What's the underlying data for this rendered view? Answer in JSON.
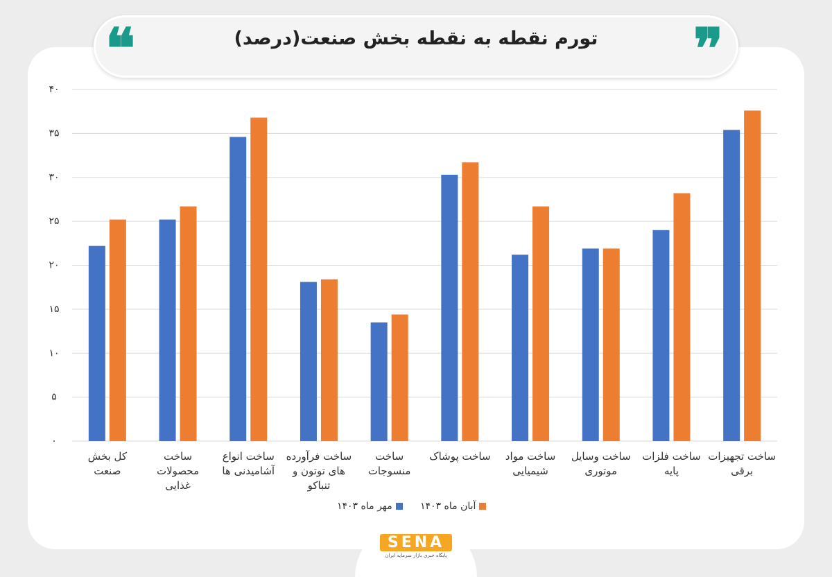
{
  "chart_data": {
    "type": "bar",
    "title": "تورم نقطه به نقطه بخش صنعت(درصد)",
    "categories": [
      "کل بخش صنعت",
      "ساخت محصولات غذایی",
      "ساخت انواع آشامیدنی ها",
      "ساخت فرآورده های توتون و تنباکو",
      "ساخت منسوجات",
      "ساخت پوشاک",
      "ساخت مواد شیمیایی",
      "ساخت وسایل موتوری",
      "ساخت فلزات پایه",
      "ساخت تجهیزات برقی"
    ],
    "series": [
      {
        "name": "مهر ماه ۱۴۰۳",
        "color": "#4472c4",
        "values": [
          22.2,
          25.2,
          34.6,
          18.1,
          13.5,
          30.3,
          21.2,
          21.9,
          24.0,
          35.4
        ]
      },
      {
        "name": "آبان ماه ۱۴۰۳",
        "color": "#ed7d31",
        "values": [
          25.2,
          26.7,
          36.8,
          18.4,
          14.4,
          31.7,
          26.7,
          21.9,
          28.2,
          37.6
        ]
      }
    ],
    "ylim": [
      0,
      40
    ],
    "yticks": [
      {
        "value": 0,
        "label": "۰"
      },
      {
        "value": 5,
        "label": "۵"
      },
      {
        "value": 10,
        "label": "۱۰"
      },
      {
        "value": 15,
        "label": "۱۵"
      },
      {
        "value": 20,
        "label": "۲۰"
      },
      {
        "value": 25,
        "label": "۲۵"
      },
      {
        "value": 30,
        "label": "۳۰"
      },
      {
        "value": 35,
        "label": "۳۵"
      },
      {
        "value": 40,
        "label": "۴۰"
      }
    ],
    "grid": true
  },
  "logo": {
    "text": "SENA",
    "tagline": "پایگاه خبری بازار سرمایه ایران"
  }
}
